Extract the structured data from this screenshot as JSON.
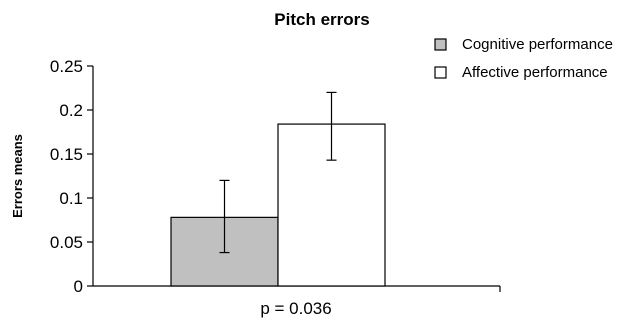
{
  "chart_data": {
    "type": "bar",
    "title": "Pitch errors",
    "xlabel": "",
    "ylabel": "Errors means",
    "categories": [
      ""
    ],
    "series": [
      {
        "name": "Cognitive performance",
        "values": [
          0.078
        ],
        "error_low": [
          0.038
        ],
        "error_high": [
          0.12
        ],
        "color": "#c0c0c0"
      },
      {
        "name": "Affective performance",
        "values": [
          0.184
        ],
        "error_low": [
          0.143
        ],
        "error_high": [
          0.22
        ],
        "color": "#ffffff"
      }
    ],
    "ylim": [
      0,
      0.25
    ],
    "yticks": [
      0,
      0.05,
      0.1,
      0.15,
      0.2,
      0.25
    ],
    "ytick_labels": [
      "0",
      "0.05",
      "0.1",
      "0.15",
      "0.2",
      "0.25"
    ],
    "annotation": "p = 0.036",
    "legend_position": "top-right",
    "grid": false
  }
}
